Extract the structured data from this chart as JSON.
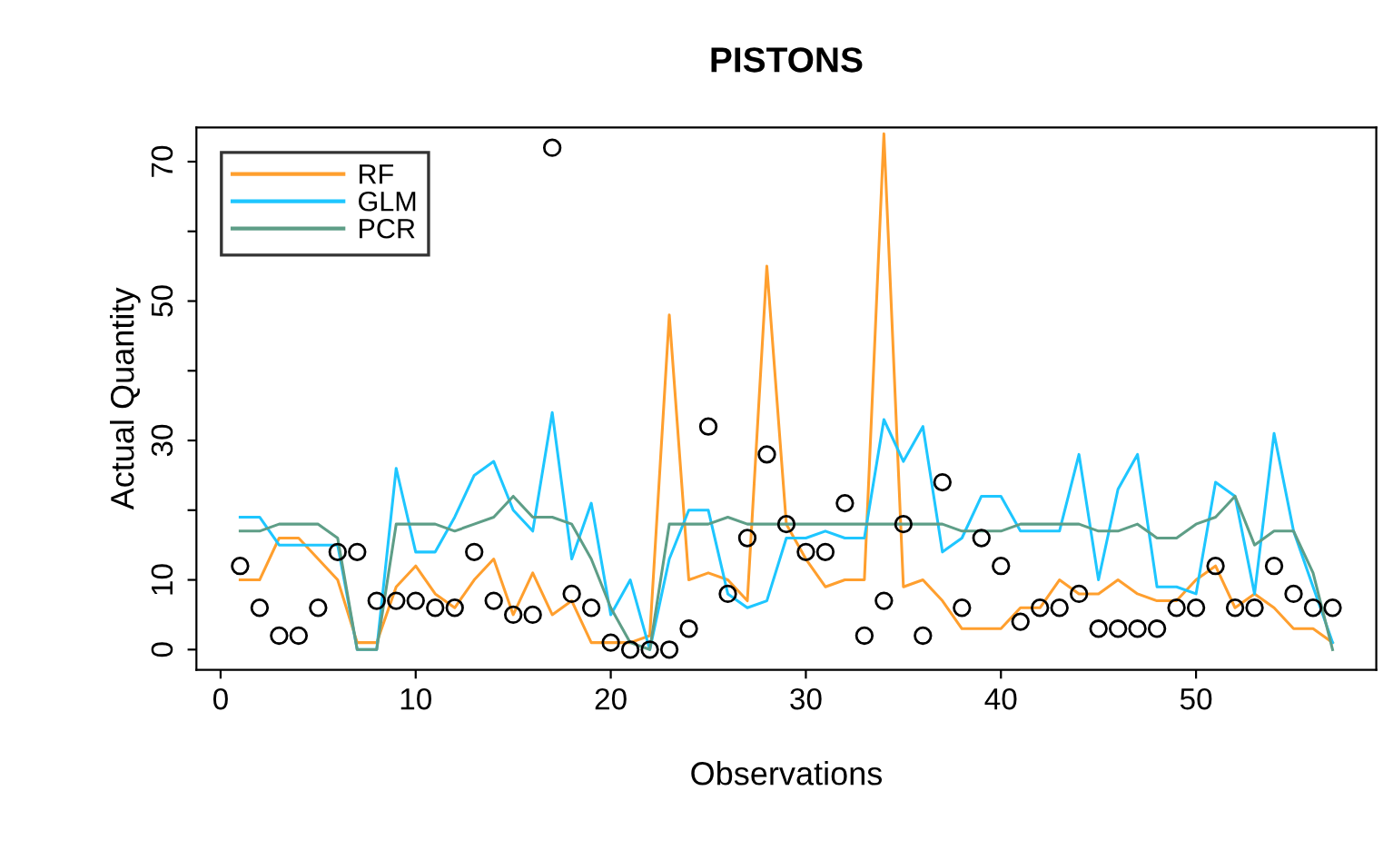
{
  "chart_data": {
    "type": "line",
    "title": "PISTONS",
    "xlabel": "Observations",
    "ylabel": "Actual Quantity",
    "x": [
      1,
      2,
      3,
      4,
      5,
      6,
      7,
      8,
      9,
      10,
      11,
      12,
      13,
      14,
      15,
      16,
      17,
      18,
      19,
      20,
      21,
      22,
      23,
      24,
      25,
      26,
      27,
      28,
      29,
      30,
      31,
      32,
      33,
      34,
      35,
      36,
      37,
      38,
      39,
      40,
      41,
      42,
      43,
      44,
      45,
      46,
      47,
      48,
      49,
      50,
      51,
      52,
      53,
      54,
      55,
      56,
      57
    ],
    "series": [
      {
        "type": "scatter",
        "color": "#000000",
        "marker": "circle",
        "values": [
          12,
          6,
          2,
          2,
          6,
          14,
          14,
          7,
          7,
          7,
          6,
          6,
          14,
          7,
          5,
          5,
          72,
          8,
          6,
          1,
          0,
          0,
          0,
          3,
          32,
          8,
          16,
          28,
          18,
          14,
          14,
          21,
          2,
          7,
          18,
          2,
          24,
          6,
          16,
          12,
          4,
          6,
          6,
          8,
          3,
          3,
          3,
          3,
          6,
          6,
          12,
          6,
          6,
          12,
          8,
          6,
          6
        ]
      },
      {
        "name": "RF",
        "color": "#ff9f2e",
        "marker": "none",
        "values": [
          10,
          10,
          16,
          16,
          13,
          10,
          1,
          1,
          9,
          12,
          8,
          6,
          10,
          13,
          5,
          11,
          5,
          7,
          1,
          1,
          1,
          2,
          48,
          10,
          11,
          10,
          7,
          55,
          18,
          13,
          9,
          10,
          10,
          74,
          9,
          10,
          7,
          3,
          3,
          3,
          6,
          6,
          10,
          8,
          8,
          10,
          8,
          7,
          7,
          10,
          12,
          6,
          8,
          6,
          3,
          3,
          1
        ]
      },
      {
        "name": "GLM",
        "color": "#1ec6ff",
        "marker": "none",
        "values": [
          19,
          19,
          15,
          15,
          15,
          15,
          0,
          0,
          26,
          14,
          14,
          19,
          25,
          27,
          20,
          17,
          34,
          13,
          21,
          5,
          10,
          0,
          13,
          20,
          20,
          8,
          6,
          7,
          16,
          16,
          17,
          16,
          16,
          33,
          27,
          32,
          14,
          16,
          22,
          22,
          17,
          17,
          17,
          28,
          10,
          23,
          28,
          9,
          9,
          8,
          24,
          22,
          8,
          31,
          17,
          9,
          1
        ]
      },
      {
        "name": "PCR",
        "color": "#5e9e87",
        "marker": "none",
        "values": [
          17,
          17,
          18,
          18,
          18,
          16,
          0,
          0,
          18,
          18,
          18,
          17,
          18,
          19,
          22,
          19,
          19,
          18,
          13,
          6,
          1,
          0,
          18,
          18,
          18,
          19,
          18,
          18,
          18,
          18,
          18,
          18,
          18,
          18,
          18,
          18,
          18,
          17,
          17,
          17,
          18,
          18,
          18,
          18,
          17,
          17,
          18,
          16,
          16,
          18,
          19,
          22,
          15,
          17,
          17,
          11,
          0
        ]
      }
    ],
    "xlim": [
      -1.24,
      59.24
    ],
    "ylim": [
      -2.9,
      74.9
    ],
    "xticks": [
      0,
      10,
      20,
      30,
      40,
      50
    ],
    "yticks": [
      0,
      10,
      {
        "value": 20,
        "label": null
      },
      30,
      {
        "value": 40,
        "label": null
      },
      50,
      {
        "value": 60,
        "label": null
      },
      70
    ],
    "grid": false,
    "legend": "top left"
  }
}
